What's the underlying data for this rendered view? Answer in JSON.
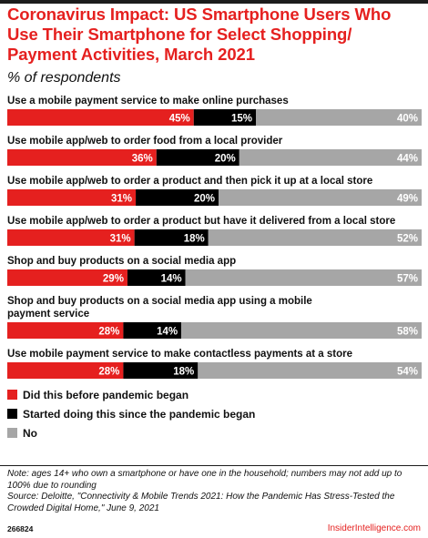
{
  "header": {
    "title": "Coronavirus Impact: US Smartphone Users Who Use Their Smartphone for Select Shopping/ Payment Activities, March 2021",
    "subtitle": "% of respondents"
  },
  "colors": {
    "accent": "#e5201f",
    "did_before": "#e5201f",
    "started_since": "#000000",
    "no": "#a6a6a6"
  },
  "chart_data": {
    "type": "bar",
    "orientation": "horizontal",
    "stacked": true,
    "title": "Coronavirus Impact: US Smartphone Users Who Use Their Smartphone for Select Shopping/ Payment Activities, March 2021",
    "subtitle": "% of respondents",
    "unit": "%",
    "categories": [
      [
        "Use a mobile payment service to make online purchases"
      ],
      [
        "Use mobile app/web to order food from a local provider"
      ],
      [
        "Use mobile app/web to order a product and then pick it up at a local store"
      ],
      [
        "Use mobile app/web to order a product but have it delivered from a local store"
      ],
      [
        "Shop and buy products on a social media app"
      ],
      [
        "Shop and buy products on a social media app using a mobile",
        "payment service"
      ],
      [
        "Use mobile payment service to make contactless payments at a store"
      ]
    ],
    "series": [
      {
        "name": "Did this before pandemic began",
        "color": "#e5201f",
        "values": [
          45,
          36,
          31,
          31,
          29,
          28,
          28
        ]
      },
      {
        "name": "Started doing this since the pandemic began",
        "color": "#000000",
        "values": [
          15,
          20,
          20,
          18,
          14,
          14,
          18
        ]
      },
      {
        "name": "No",
        "color": "#a6a6a6",
        "values": [
          40,
          44,
          49,
          52,
          57,
          58,
          54
        ]
      }
    ],
    "legend_position": "bottom-left",
    "grid": false
  },
  "legend": [
    {
      "label": "Did this before pandemic began",
      "color": "#e5201f"
    },
    {
      "label": "Started doing this since the pandemic began",
      "color": "#000000"
    },
    {
      "label": "No",
      "color": "#a6a6a6"
    }
  ],
  "footer": {
    "note": "Note: ages 14+ who own a smartphone or have one in the household; numbers may not add up to 100% due to rounding",
    "source": "Source: Deloitte, \"Connectivity & Mobile Trends 2021: How the Pandemic Has Stress-Tested the Crowded Digital Home,\" June 9, 2021",
    "chart_id": "266824",
    "brand": "InsiderIntelligence.com"
  }
}
